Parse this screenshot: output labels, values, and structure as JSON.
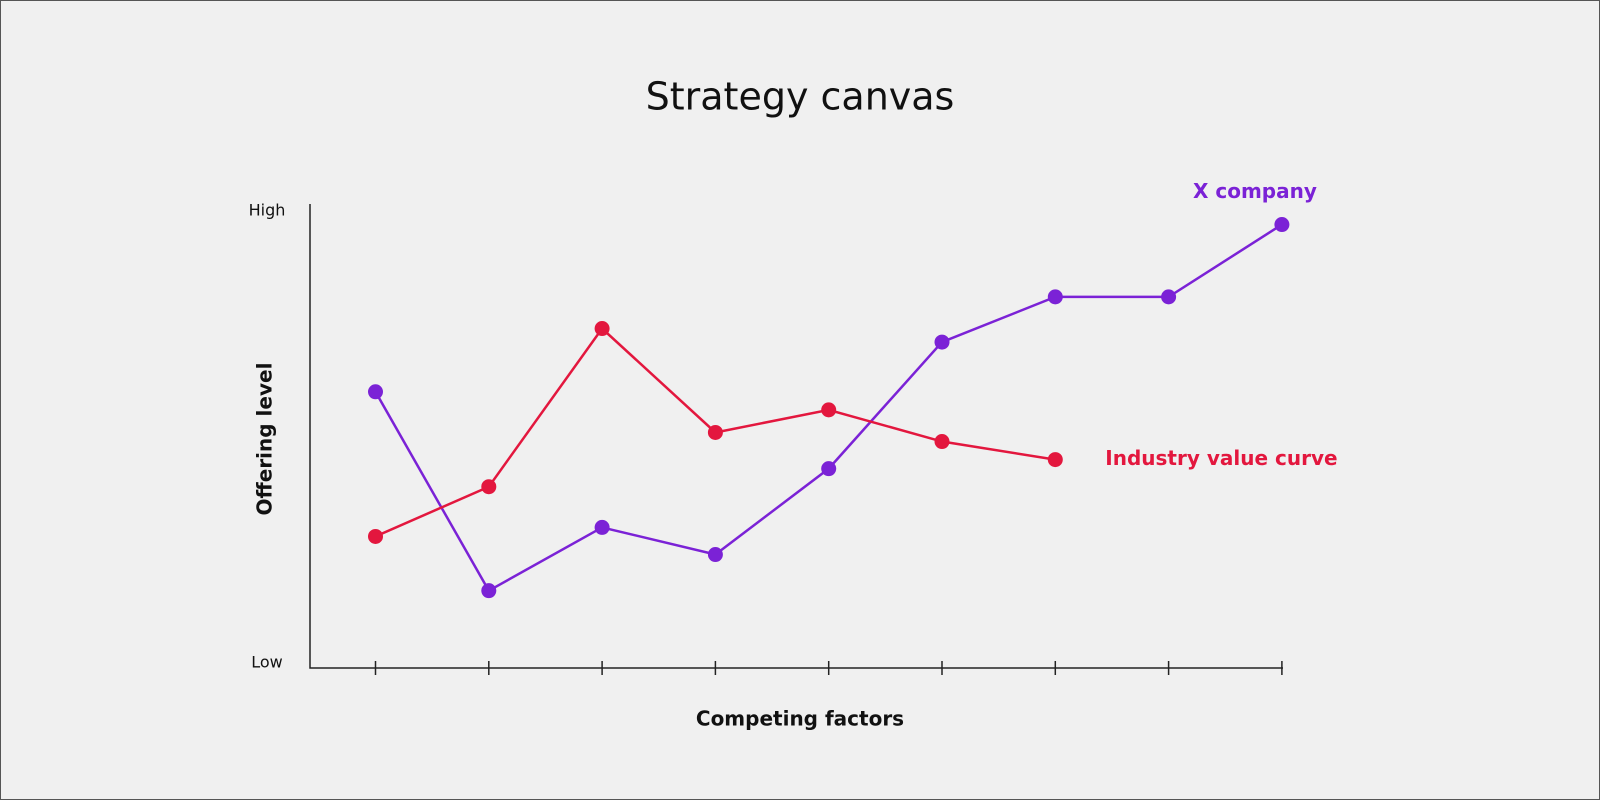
{
  "chart_data": {
    "type": "line",
    "title": "Strategy canvas",
    "x_label": "Competing factors",
    "y_label": "Offering level",
    "categories": [
      null,
      null,
      null,
      null,
      null,
      null,
      null,
      null,
      null
    ],
    "series": [
      {
        "name": "X company",
        "color": "#7b22d6",
        "values": [
          6.0,
          1.6,
          3.0,
          2.4,
          4.3,
          7.1,
          8.1,
          8.1,
          9.7
        ]
      },
      {
        "name": "Industry value curve",
        "color": "#e3173e",
        "values": [
          2.8,
          3.9,
          7.4,
          5.1,
          5.6,
          4.9,
          4.5,
          null,
          null
        ]
      }
    ],
    "ylim": [
      0,
      10
    ],
    "yticks": [
      {
        "value": 0,
        "label": "Low"
      },
      {
        "value": 10,
        "label": "High"
      }
    ],
    "grid": false
  }
}
